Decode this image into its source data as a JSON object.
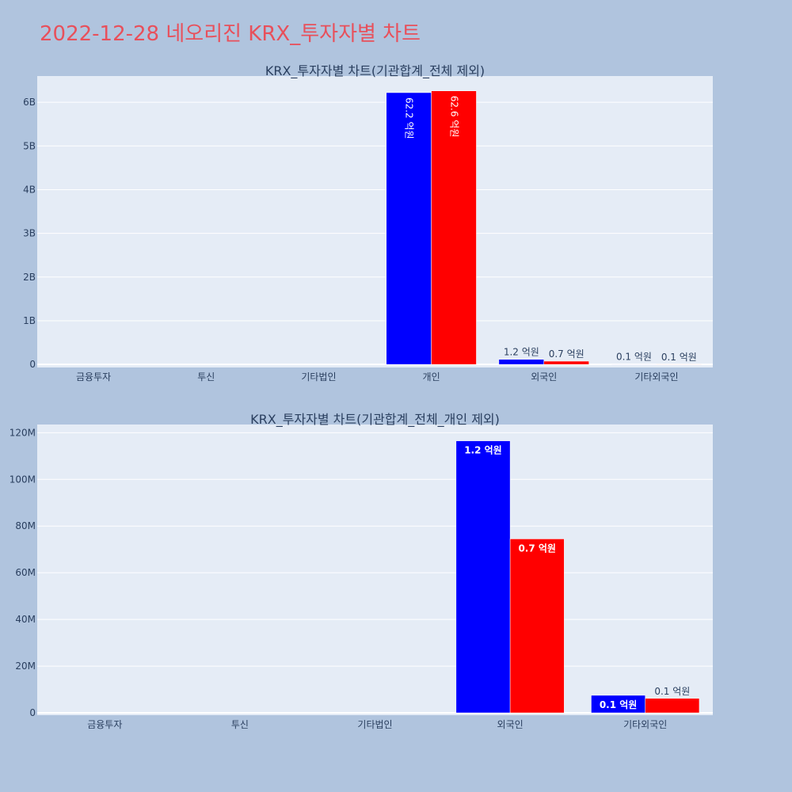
{
  "page": {
    "title": "2022-12-28 네오리진 KRX_투자자별 차트",
    "title_color": "#e8505b",
    "background": "#b0c4de",
    "plot_background": "#e5ecf6"
  },
  "chart_data": [
    {
      "type": "bar",
      "title": "KRX_투자자별 차트(기관합계_전체 제외)",
      "categories": [
        "금융투자",
        "투신",
        "기타법인",
        "개인",
        "외국인",
        "기타외국인"
      ],
      "series": [
        {
          "color": "#0000ff",
          "values": [
            0,
            0,
            0,
            6220000000,
            116000000,
            7500000
          ],
          "labels": [
            "",
            "",
            "",
            "62.2 억원",
            "1.2 억원",
            "0.1 억원"
          ]
        },
        {
          "color": "#ff0000",
          "values": [
            0,
            0,
            0,
            6260000000,
            74500000,
            6300000
          ],
          "labels": [
            "",
            "",
            "",
            "62.6 억원",
            "0.7 억원",
            "0.1 억원"
          ]
        }
      ],
      "ylim": [
        -70000000,
        6600000000
      ],
      "yticks": [
        0,
        1000000000,
        2000000000,
        3000000000,
        4000000000,
        5000000000,
        6000000000
      ],
      "ytick_labels": [
        "0",
        "1B",
        "2B",
        "3B",
        "4B",
        "5B",
        "6B"
      ],
      "grid": true,
      "label_orientation": "vertical-inside"
    },
    {
      "type": "bar",
      "title": "KRX_투자자별 차트(기관합계_전체_개인 제외)",
      "categories": [
        "금융투자",
        "투신",
        "기타법인",
        "외국인",
        "기타외국인"
      ],
      "series": [
        {
          "color": "#0000ff",
          "values": [
            0,
            0,
            0,
            116500000,
            7500000
          ],
          "labels": [
            "",
            "",
            "",
            "1.2 억원",
            "0.1 억원"
          ]
        },
        {
          "color": "#ff0000",
          "values": [
            0,
            0,
            0,
            74500000,
            6200000
          ],
          "labels": [
            "",
            "",
            "",
            "0.7 억원",
            "0.1 억원"
          ]
        }
      ],
      "ylim": [
        -1000000,
        123500000
      ],
      "yticks": [
        0,
        20000000,
        40000000,
        60000000,
        80000000,
        100000000,
        120000000
      ],
      "ytick_labels": [
        "0",
        "20M",
        "40M",
        "60M",
        "80M",
        "100M",
        "120M"
      ],
      "grid": true,
      "label_orientation": "horizontal"
    }
  ]
}
